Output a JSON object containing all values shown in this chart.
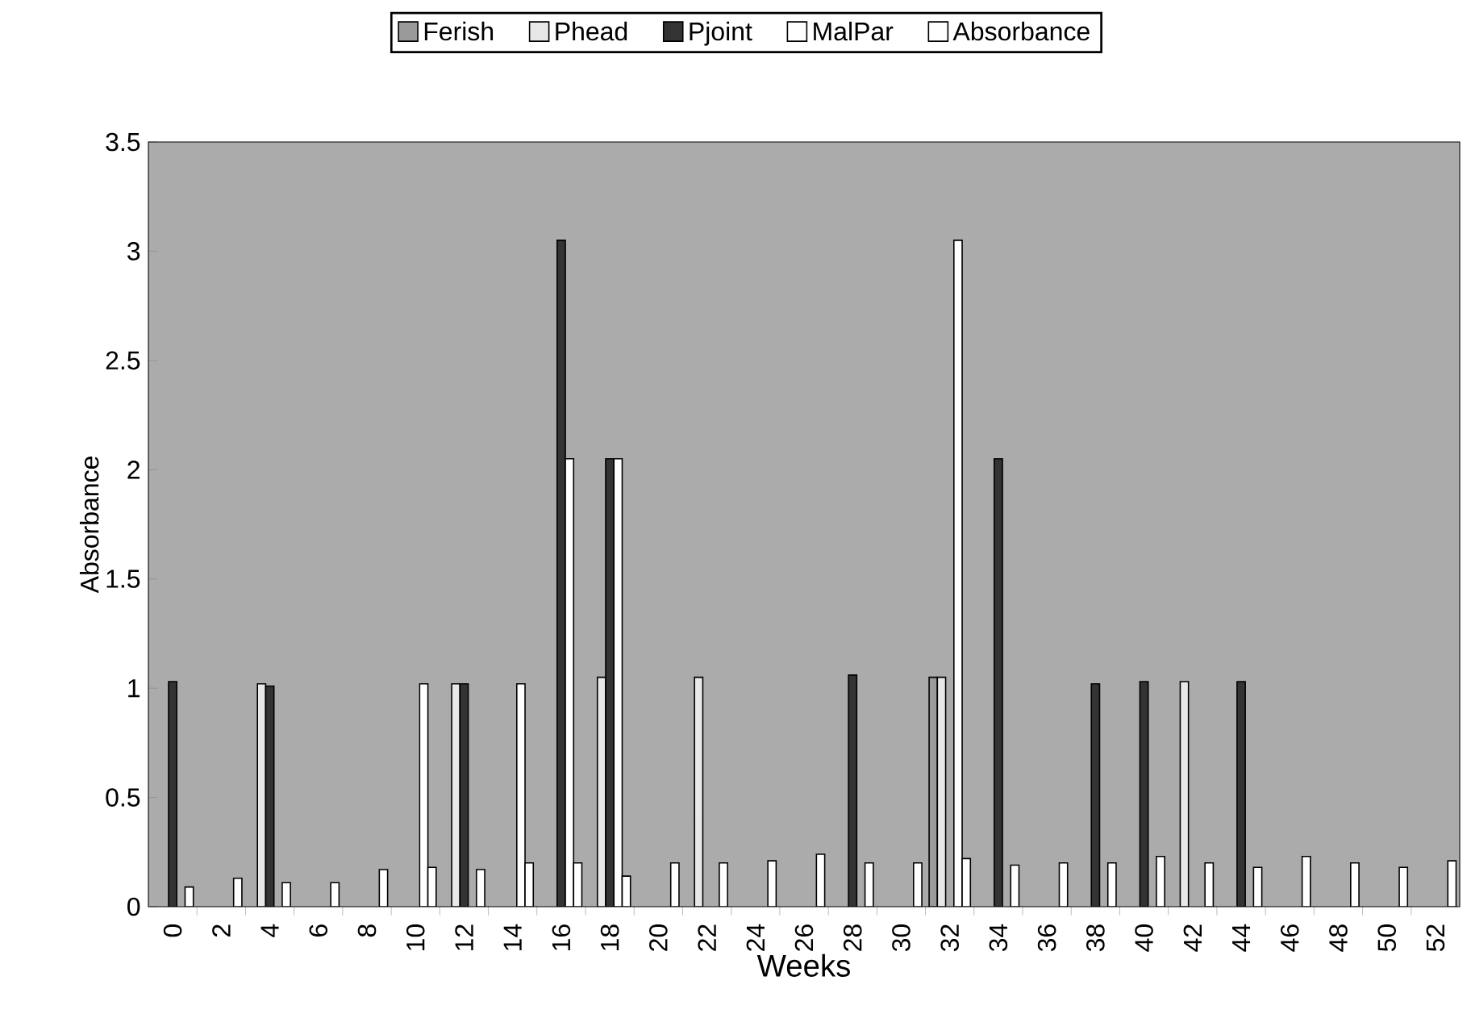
{
  "chart_data": {
    "type": "bar",
    "xlabel": "Weeks",
    "ylabel": "Absorbance",
    "categories": [
      "0",
      "2",
      "4",
      "6",
      "8",
      "10",
      "12",
      "14",
      "16",
      "18",
      "20",
      "22",
      "24",
      "26",
      "28",
      "30",
      "32",
      "34",
      "36",
      "38",
      "40",
      "42",
      "44",
      "46",
      "48",
      "50",
      "52"
    ],
    "series": [
      {
        "name": "Ferish",
        "color": "#9a9a9a",
        "values": [
          null,
          null,
          null,
          null,
          null,
          null,
          null,
          null,
          null,
          null,
          null,
          null,
          null,
          null,
          null,
          null,
          1.05,
          null,
          null,
          null,
          null,
          null,
          null,
          null,
          null,
          null,
          null
        ]
      },
      {
        "name": "Phead",
        "color": "#e8e8e8",
        "values": [
          null,
          null,
          1.02,
          null,
          null,
          null,
          1.02,
          null,
          null,
          1.05,
          null,
          1.05,
          null,
          null,
          null,
          null,
          1.05,
          null,
          null,
          null,
          null,
          1.03,
          null,
          null,
          null,
          null,
          null
        ]
      },
      {
        "name": "Pjoint",
        "color": "#333333",
        "values": [
          1.03,
          null,
          1.01,
          null,
          null,
          null,
          1.02,
          null,
          3.05,
          2.05,
          null,
          null,
          null,
          null,
          1.06,
          null,
          null,
          2.05,
          null,
          1.02,
          1.03,
          null,
          1.03,
          null,
          null,
          null,
          null
        ]
      },
      {
        "name": "MalPar",
        "color": "#ffffff",
        "values": [
          null,
          null,
          null,
          null,
          null,
          1.02,
          null,
          1.02,
          2.05,
          2.05,
          null,
          null,
          null,
          null,
          null,
          null,
          3.05,
          null,
          null,
          null,
          null,
          null,
          null,
          null,
          null,
          null,
          null
        ]
      },
      {
        "name": "Absorbance",
        "color": "#ffffff",
        "values": [
          0.09,
          0.13,
          0.11,
          0.11,
          0.17,
          0.18,
          0.17,
          0.2,
          0.2,
          0.14,
          0.2,
          0.2,
          0.21,
          0.24,
          0.2,
          0.2,
          0.22,
          0.19,
          0.2,
          0.2,
          0.23,
          0.2,
          0.18,
          0.23,
          0.2,
          0.18,
          0.21
        ]
      }
    ],
    "ylim": [
      0,
      3.5
    ],
    "yticks": [
      0,
      0.5,
      1,
      1.5,
      2,
      2.5,
      3,
      3.5
    ],
    "legend": "top",
    "grid": false
  }
}
